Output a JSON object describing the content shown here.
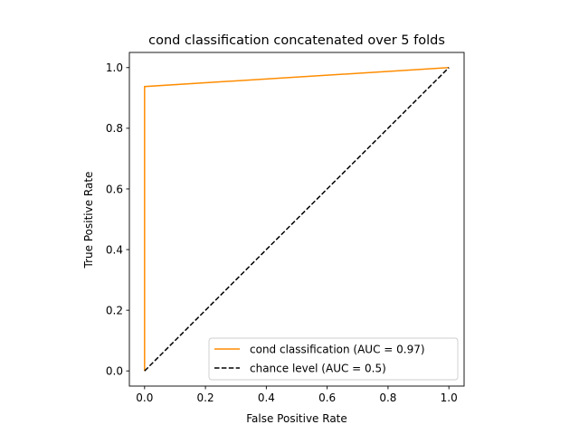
{
  "chart_data": {
    "type": "line",
    "title": "cond classification concatenated over 5 folds",
    "xlabel": "False Positive Rate",
    "ylabel": "True Positive Rate",
    "xlim": [
      -0.05,
      1.05
    ],
    "ylim": [
      -0.05,
      1.05
    ],
    "xticks": [
      0.0,
      0.2,
      0.4,
      0.6,
      0.8,
      1.0
    ],
    "yticks": [
      0.0,
      0.2,
      0.4,
      0.6,
      0.8,
      1.0
    ],
    "xtick_labels": [
      "0.0",
      "0.2",
      "0.4",
      "0.6",
      "0.8",
      "1.0"
    ],
    "ytick_labels": [
      "0.0",
      "0.2",
      "0.4",
      "0.6",
      "0.8",
      "1.0"
    ],
    "grid": false,
    "legend_position": "lower-right",
    "series": [
      {
        "name": "cond classification (AUC = 0.97)",
        "color": "#ff8c00",
        "style": "solid",
        "x": [
          0.0,
          0.0,
          1.0
        ],
        "y": [
          0.0,
          0.9375,
          1.0
        ]
      },
      {
        "name": "chance level (AUC = 0.5)",
        "color": "#000000",
        "style": "dashed",
        "x": [
          0.0,
          1.0
        ],
        "y": [
          0.0,
          1.0
        ]
      }
    ]
  }
}
